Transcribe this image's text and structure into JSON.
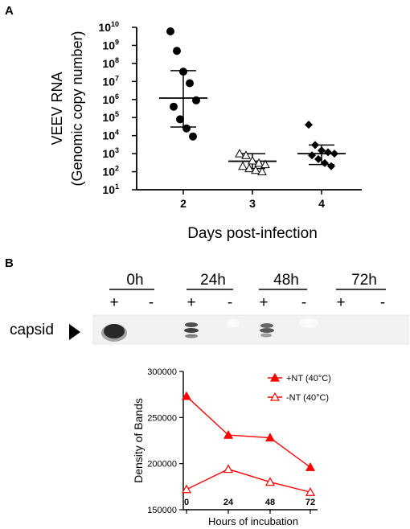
{
  "panel_a_label": "A",
  "panel_b_label": "B",
  "chart_data": [
    {
      "type": "scatter",
      "panel": "A",
      "ylabel_line1": "VEEV RNA",
      "ylabel_line2": "(Genomic copy number)",
      "xlabel": "Days post-infection",
      "yscale": "log",
      "ylim": [
        10,
        10000000000
      ],
      "ytick_exponents": [
        "1",
        "2",
        "3",
        "4",
        "5",
        "6",
        "7",
        "8",
        "9",
        "10"
      ],
      "ytick_base": "10",
      "categories": [
        "2",
        "3",
        "4"
      ],
      "groups": [
        {
          "day": "2",
          "marker": "circle-filled",
          "points": [
            6000000000,
            500000000,
            35000000,
            8000000,
            900000,
            400000,
            80000,
            25000,
            9000
          ],
          "mean": 1200000,
          "error_low": 30000,
          "error_high": 40000000
        },
        {
          "day": "3",
          "marker": "triangle-open",
          "points": [
            1000,
            800,
            400,
            300,
            250,
            200,
            150,
            120,
            100
          ],
          "mean": 380,
          "error_low": 150,
          "error_high": 1000
        },
        {
          "day": "4",
          "marker": "diamond-filled",
          "points": [
            40000,
            3000,
            1500,
            1200,
            1000,
            800,
            500,
            300,
            200
          ],
          "mean": 1000,
          "error_low": 250,
          "error_high": 3000
        }
      ]
    },
    {
      "type": "line",
      "panel": "B",
      "ylabel": "Density of Bands",
      "xlabel": "Hours of incubation",
      "categories": [
        "0",
        "24",
        "48",
        "72"
      ],
      "ylim": [
        150000,
        300000
      ],
      "yticks": [
        "150000",
        "200000",
        "250000",
        "300000"
      ],
      "series": [
        {
          "name": "+NT (40°C)",
          "marker": "triangle-filled",
          "values": [
            273000,
            231000,
            228000,
            196000
          ]
        },
        {
          "name": "-NT (40°C)",
          "marker": "triangle-open",
          "values": [
            172000,
            194000,
            180000,
            169000
          ]
        }
      ],
      "color": "#ff0000"
    }
  ],
  "blot": {
    "timepoints": [
      "0h",
      "24h",
      "48h",
      "72h"
    ],
    "plus": "+",
    "minus": "-",
    "band_label": "capsid"
  }
}
